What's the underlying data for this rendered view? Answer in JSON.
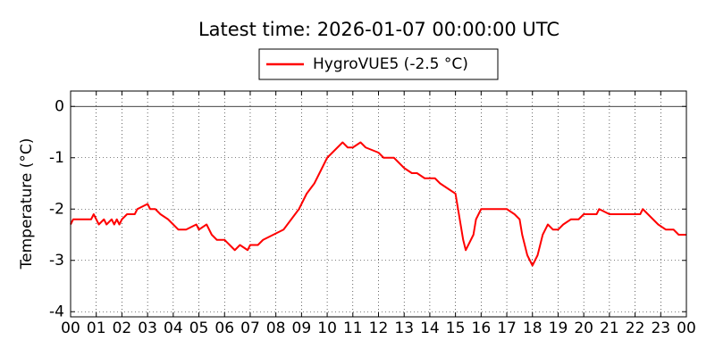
{
  "chart_data": {
    "type": "line",
    "title": "Latest time: 2026-01-07 00:00:00 UTC",
    "y_label": "Temperature (°C)",
    "xlim": [
      0,
      24
    ],
    "ylim": [
      -4.1,
      0.3
    ],
    "xticks": [
      {
        "value": 0,
        "label": "00"
      },
      {
        "value": 1,
        "label": "01"
      },
      {
        "value": 2,
        "label": "02"
      },
      {
        "value": 3,
        "label": "03"
      },
      {
        "value": 4,
        "label": "04"
      },
      {
        "value": 5,
        "label": "05"
      },
      {
        "value": 6,
        "label": "06"
      },
      {
        "value": 7,
        "label": "07"
      },
      {
        "value": 8,
        "label": "08"
      },
      {
        "value": 9,
        "label": "09"
      },
      10,
      11,
      12,
      13,
      14,
      15,
      16,
      17,
      18,
      19,
      20,
      21,
      22,
      23,
      {
        "value": 24,
        "label": "00"
      }
    ],
    "yticks": [
      -4,
      -3,
      -2,
      -1,
      0
    ],
    "grid": true,
    "reference_line": 0,
    "legend": "top",
    "x": [
      0.0,
      0.1,
      0.5,
      0.8,
      0.9,
      1.0,
      1.1,
      1.3,
      1.4,
      1.6,
      1.7,
      1.8,
      1.9,
      2.0,
      2.2,
      2.5,
      2.6,
      3.0,
      3.1,
      3.3,
      3.5,
      3.8,
      4.0,
      4.2,
      4.5,
      4.9,
      5.0,
      5.3,
      5.5,
      5.7,
      6.0,
      6.2,
      6.4,
      6.6,
      6.9,
      7.0,
      7.3,
      7.5,
      7.9,
      8.3,
      8.6,
      8.9,
      9.2,
      9.5,
      9.8,
      10.0,
      10.2,
      10.4,
      10.6,
      10.8,
      11.0,
      11.3,
      11.5,
      12.0,
      12.2,
      12.6,
      12.8,
      13.0,
      13.3,
      13.5,
      13.8,
      14.2,
      14.4,
      14.7,
      15.0,
      15.1,
      15.2,
      15.3,
      15.4,
      15.5,
      15.7,
      15.8,
      16.0,
      16.2,
      16.5,
      17.0,
      17.3,
      17.5,
      17.6,
      17.8,
      18.0,
      18.2,
      18.4,
      18.6,
      18.8,
      19.0,
      19.2,
      19.5,
      19.8,
      20.0,
      20.5,
      20.6,
      21.0,
      21.5,
      22.0,
      22.2,
      22.3,
      22.5,
      22.7,
      22.9,
      23.2,
      23.5,
      23.7,
      24.0
    ],
    "series": [
      {
        "name": "HygroVUE5 (-2.5 °C)",
        "color": "#ff0000",
        "values": [
          -2.3,
          -2.2,
          -2.2,
          -2.2,
          -2.1,
          -2.2,
          -2.3,
          -2.2,
          -2.3,
          -2.2,
          -2.3,
          -2.2,
          -2.3,
          -2.2,
          -2.1,
          -2.1,
          -2.0,
          -1.9,
          -2.0,
          -2.0,
          -2.1,
          -2.2,
          -2.3,
          -2.4,
          -2.4,
          -2.3,
          -2.4,
          -2.3,
          -2.5,
          -2.6,
          -2.6,
          -2.7,
          -2.8,
          -2.7,
          -2.8,
          -2.7,
          -2.7,
          -2.6,
          -2.5,
          -2.4,
          -2.2,
          -2.0,
          -1.7,
          -1.5,
          -1.2,
          -1.0,
          -0.9,
          -0.8,
          -0.7,
          -0.8,
          -0.8,
          -0.7,
          -0.8,
          -0.9,
          -1.0,
          -1.0,
          -1.1,
          -1.2,
          -1.3,
          -1.3,
          -1.4,
          -1.4,
          -1.5,
          -1.6,
          -1.7,
          -2.0,
          -2.3,
          -2.6,
          -2.8,
          -2.7,
          -2.5,
          -2.2,
          -2.0,
          -2.0,
          -2.0,
          -2.0,
          -2.1,
          -2.2,
          -2.5,
          -2.9,
          -3.1,
          -2.9,
          -2.5,
          -2.3,
          -2.4,
          -2.4,
          -2.3,
          -2.2,
          -2.2,
          -2.1,
          -2.1,
          -2.0,
          -2.1,
          -2.1,
          -2.1,
          -2.1,
          -2.0,
          -2.1,
          -2.2,
          -2.3,
          -2.4,
          -2.4,
          -2.5,
          -2.5
        ]
      }
    ]
  }
}
